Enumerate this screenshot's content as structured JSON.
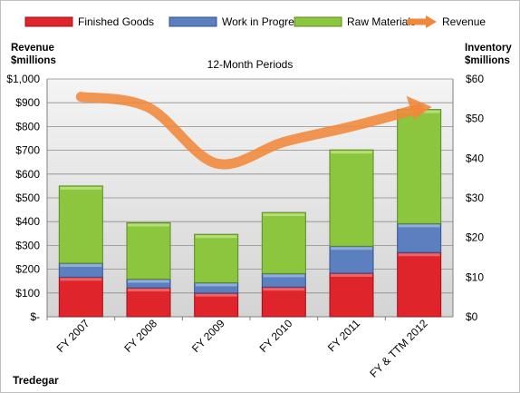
{
  "chart_data": {
    "type": "bar",
    "subtitle": "12-Month Periods",
    "company": "Tredegar",
    "y_left_label_line1": "Revenue",
    "y_left_label_line2": "$millions",
    "y_right_label_line1": "Inventory",
    "y_right_label_line2": "$millions",
    "categories": [
      "FY 2007",
      "FY 2008",
      "FY 2009",
      "FY 2010",
      "FY 2011",
      "FY & TTM 2012"
    ],
    "series": [
      {
        "name": "Finished Goods",
        "values": [
          10,
          7.3,
          6,
          7.5,
          11,
          16.2
        ],
        "color": "#e0242b"
      },
      {
        "name": "Work in Progress",
        "values": [
          3.5,
          2.2,
          2.6,
          3.4,
          6.8,
          7.3
        ],
        "color": "#5b7fbf"
      },
      {
        "name": "Raw Materials",
        "values": [
          19.5,
          14.2,
          12.2,
          15.4,
          24.3,
          28.8
        ],
        "color": "#8cc63f"
      }
    ],
    "line_series": {
      "name": "Revenue",
      "values": [
        925,
        880,
        645,
        735,
        800,
        875
      ],
      "color": "#f0883a"
    },
    "y_left_ticks": [
      "$-",
      "$100",
      "$200",
      "$300",
      "$400",
      "$500",
      "$600",
      "$700",
      "$800",
      "$900",
      "$1,000"
    ],
    "y_left_range": [
      0,
      1000
    ],
    "y_right_ticks": [
      "$0",
      "$10",
      "$20",
      "$30",
      "$40",
      "$50",
      "$60"
    ],
    "y_right_range": [
      0,
      60
    ],
    "legend_position": "top",
    "grid": true
  }
}
